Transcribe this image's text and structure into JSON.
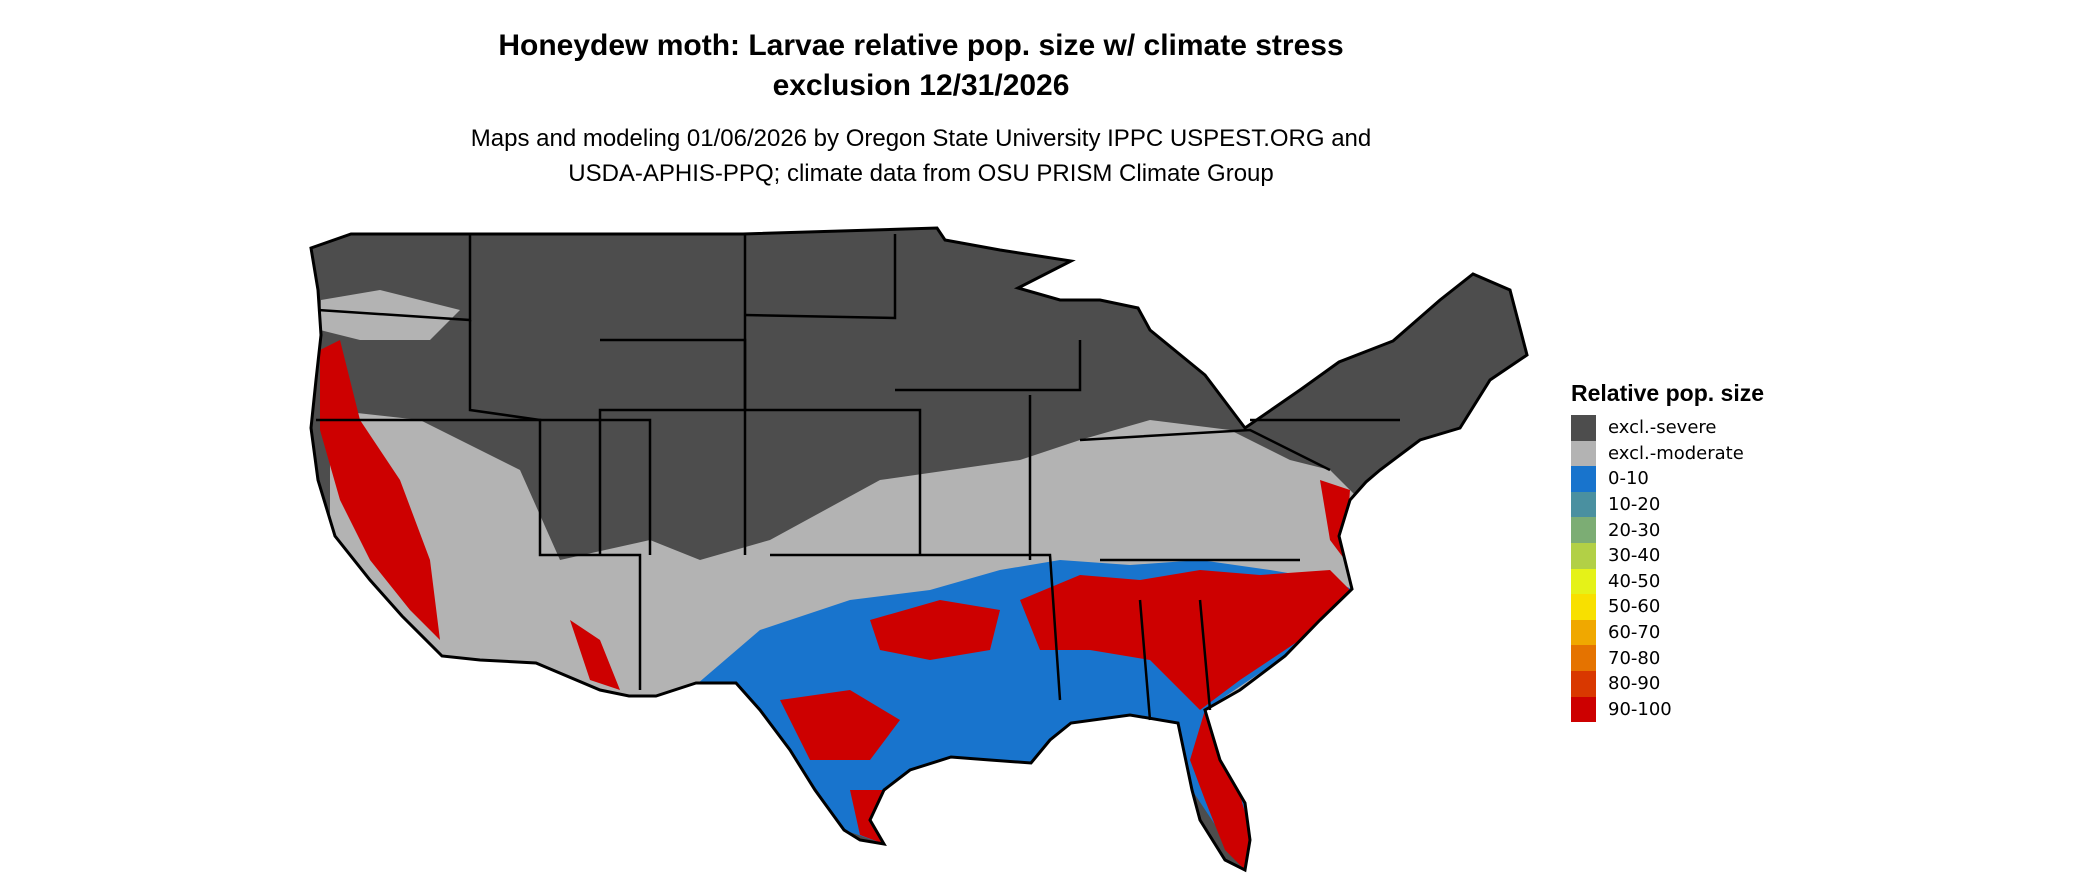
{
  "title": {
    "line1": "Honeydew moth: Larvae relative pop. size w/ climate stress",
    "line2": "exclusion 12/31/2026"
  },
  "subtitle": {
    "line1": "Maps and modeling 01/06/2026 by Oregon State University IPPC USPEST.ORG and",
    "line2": "USDA-APHIS-PPQ; climate data from OSU PRISM Climate Group"
  },
  "legend": {
    "title": "Relative pop. size",
    "items": [
      {
        "label": "excl.-severe",
        "color": "#4d4d4d"
      },
      {
        "label": "excl.-moderate",
        "color": "#b3b3b3"
      },
      {
        "label": "0-10",
        "color": "#1874cd"
      },
      {
        "label": "10-20",
        "color": "#4a90a0"
      },
      {
        "label": "20-30",
        "color": "#7cad74"
      },
      {
        "label": "30-40",
        "color": "#b2d046"
      },
      {
        "label": "40-50",
        "color": "#e5f218"
      },
      {
        "label": "50-60",
        "color": "#f8e000"
      },
      {
        "label": "60-70",
        "color": "#f0a800"
      },
      {
        "label": "70-80",
        "color": "#e57300"
      },
      {
        "label": "80-90",
        "color": "#d93800"
      },
      {
        "label": "90-100",
        "color": "#cd0000"
      }
    ]
  }
}
